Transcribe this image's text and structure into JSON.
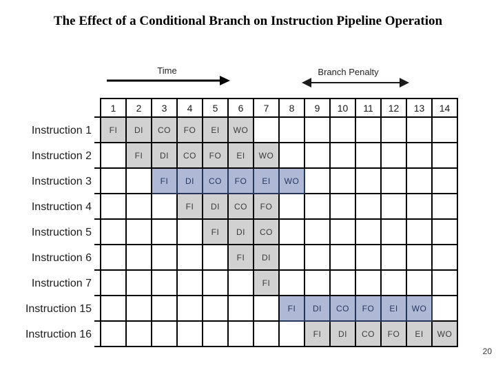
{
  "slide": {
    "title": "The Effect of a Conditional Branch on Instruction Pipeline Operation",
    "page_number": "20"
  },
  "annotations": {
    "time": {
      "label": "Time"
    },
    "branch_penalty": {
      "label": "Branch Penalty"
    }
  },
  "pipeline": {
    "time_units": [
      "1",
      "2",
      "3",
      "4",
      "5",
      "6",
      "7",
      "8",
      "9",
      "10",
      "11",
      "12",
      "13",
      "14"
    ],
    "stage_names": [
      "FI",
      "DI",
      "CO",
      "FO",
      "EI",
      "WO"
    ],
    "rows": [
      {
        "label": "Instruction 1",
        "start": 1,
        "color": "gray",
        "stages": [
          "FI",
          "DI",
          "CO",
          "FO",
          "EI",
          "WO"
        ]
      },
      {
        "label": "Instruction 2",
        "start": 2,
        "color": "gray",
        "stages": [
          "FI",
          "DI",
          "CO",
          "FO",
          "EI",
          "WO"
        ]
      },
      {
        "label": "Instruction 3",
        "start": 3,
        "color": "blue",
        "stages": [
          "FI",
          "DI",
          "CO",
          "FO",
          "EI",
          "WO"
        ]
      },
      {
        "label": "Instruction 4",
        "start": 4,
        "color": "gray",
        "stages": [
          "FI",
          "DI",
          "CO",
          "FO"
        ]
      },
      {
        "label": "Instruction 5",
        "start": 5,
        "color": "gray",
        "stages": [
          "FI",
          "DI",
          "CO"
        ]
      },
      {
        "label": "Instruction 6",
        "start": 6,
        "color": "gray",
        "stages": [
          "FI",
          "DI"
        ]
      },
      {
        "label": "Instruction 7",
        "start": 7,
        "color": "gray",
        "stages": [
          "FI"
        ]
      },
      {
        "label": "Instruction 15",
        "start": 8,
        "color": "blue",
        "stages": [
          "FI",
          "DI",
          "CO",
          "FO",
          "EI",
          "WO"
        ]
      },
      {
        "label": "Instruction 16",
        "start": 9,
        "color": "gray",
        "stages": [
          "FI",
          "DI",
          "CO",
          "FO",
          "EI",
          "WO"
        ]
      }
    ]
  },
  "colors": {
    "stage_gray_fill": "#d1d1d1",
    "stage_blue_fill": "#afb9d6",
    "blue_border": "#24365c",
    "blue_text": "#26365e",
    "grid_line": "#000000",
    "background": "#ffffff"
  }
}
